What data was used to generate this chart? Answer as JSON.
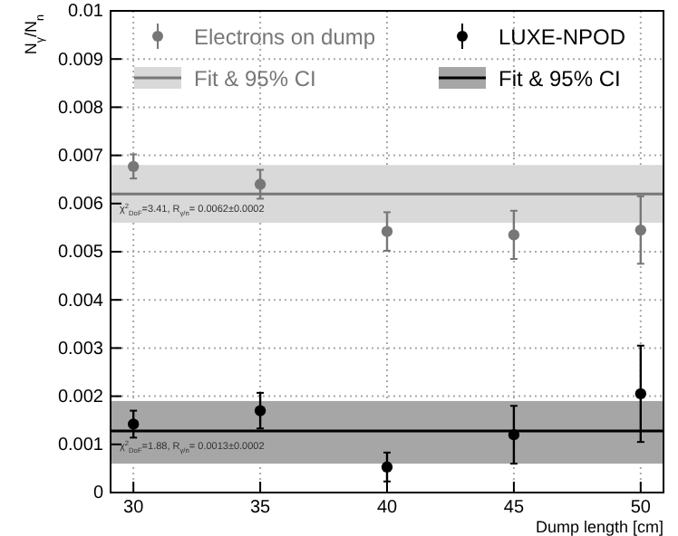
{
  "chart_data": {
    "type": "scatter",
    "xlabel": "Dump length [cm]",
    "ylabel": "N$_{γ}$/N$_{n}$",
    "x": [
      30,
      35,
      40,
      45,
      50
    ],
    "series": [
      {
        "name": "Electrons on dump",
        "color": "#777777",
        "values": [
          0.00677,
          0.0064,
          0.00542,
          0.00535,
          0.00545
        ],
        "errors": [
          0.00025,
          0.0003,
          0.0004,
          0.0005,
          0.0007
        ]
      },
      {
        "name": "LUXE-NPOD",
        "color": "#000000",
        "values": [
          0.00142,
          0.0017,
          0.00053,
          0.0012,
          0.00205
        ],
        "errors": [
          0.00028,
          0.00037,
          0.0003,
          0.0006,
          0.001
        ]
      }
    ],
    "ref_lines": [
      {
        "axis": "y",
        "value": 0.0062,
        "label": "Fit & 95% CI",
        "color": "#777777"
      },
      {
        "axis": "y",
        "value": 0.00128,
        "label": "Fit & 95% CI",
        "color": "#000000"
      }
    ],
    "bands": [
      {
        "axis": "y",
        "from": 0.0056,
        "to": 0.0068,
        "color": "#d9d9d9"
      },
      {
        "axis": "y",
        "from": 0.0006,
        "to": 0.0019,
        "color": "#a6a6a6"
      }
    ],
    "annotations": [
      "χ$^{2}$$_{DoF}$=3.41, R$_{γ/n}$= 0.0062±0.0002",
      "χ$^{2}$$_{DoF}$=1.88, R$_{γ/n}$= 0.0013±0.0002"
    ],
    "xlim": [
      29.1,
      50.9
    ],
    "ylim": [
      0,
      0.01
    ],
    "xticks": [
      30,
      35,
      40,
      45,
      50
    ],
    "yticks": [
      0,
      0.001,
      0.002,
      0.003,
      0.004,
      0.005,
      0.006,
      0.007,
      0.008,
      0.009,
      0.01
    ],
    "grid": true,
    "legend": "top",
    "marker": "circle"
  }
}
